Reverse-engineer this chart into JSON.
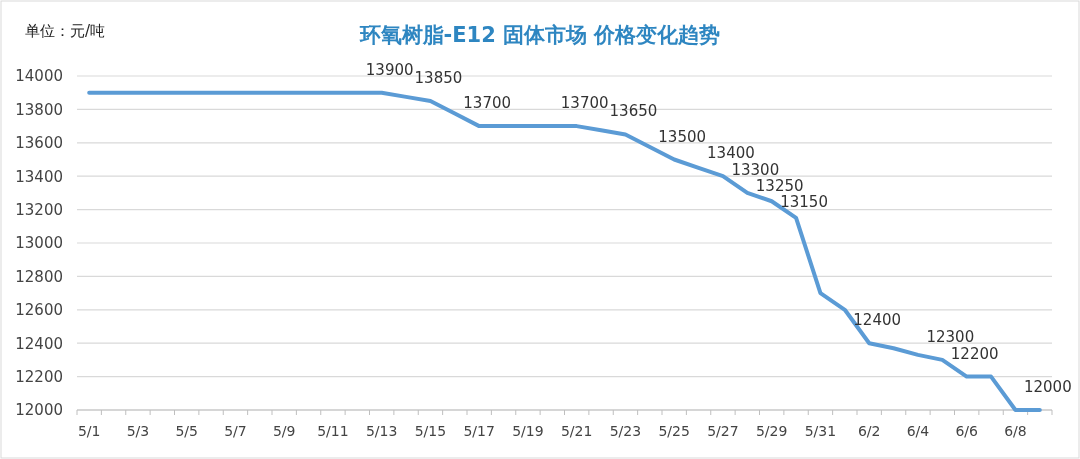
{
  "chart_data": {
    "type": "line",
    "title": "环氧树脂-E12 固体市场 价格变化趋势",
    "ylabel": "单位：元/吨",
    "categories": [
      "5/1",
      null,
      "5/3",
      null,
      "5/5",
      null,
      "5/7",
      null,
      "5/9",
      null,
      "5/11",
      null,
      "5/13",
      null,
      "5/15",
      null,
      "5/17",
      null,
      "5/19",
      null,
      "5/21",
      null,
      "5/23",
      null,
      "5/25",
      null,
      "5/27",
      null,
      "5/29",
      null,
      "5/31",
      null,
      "6/2",
      null,
      "6/4",
      null,
      "6/6",
      null,
      "6/8",
      null
    ],
    "series": [
      {
        "color": "#5b9bd5",
        "values": [
          13900,
          13900,
          13900,
          13900,
          13900,
          13900,
          13900,
          13900,
          13900,
          13900,
          13900,
          13900,
          13900,
          13875,
          13850,
          13775,
          13700,
          13700,
          13700,
          13700,
          13700,
          13675,
          13650,
          13575,
          13500,
          13450,
          13400,
          13300,
          13250,
          13150,
          12700,
          12600,
          12400,
          12370,
          12330,
          12300,
          12200,
          12200,
          12000,
          12000
        ],
        "value_labels": [
          null,
          null,
          null,
          null,
          null,
          null,
          null,
          null,
          null,
          null,
          null,
          null,
          "13900",
          null,
          "13850",
          null,
          "13700",
          null,
          null,
          null,
          "13700",
          null,
          "13650",
          null,
          "13500",
          null,
          "13400",
          "13300",
          "13250",
          "13150",
          null,
          null,
          "12400",
          null,
          null,
          "12300",
          "12200",
          null,
          null,
          "12000"
        ]
      }
    ],
    "ylim": [
      12000,
      14000
    ],
    "yticks": [
      12000,
      12200,
      12400,
      12600,
      12800,
      13000,
      13200,
      13400,
      13600,
      13800,
      14000
    ],
    "grid": "y",
    "marker": "none",
    "line_style": "solid"
  }
}
